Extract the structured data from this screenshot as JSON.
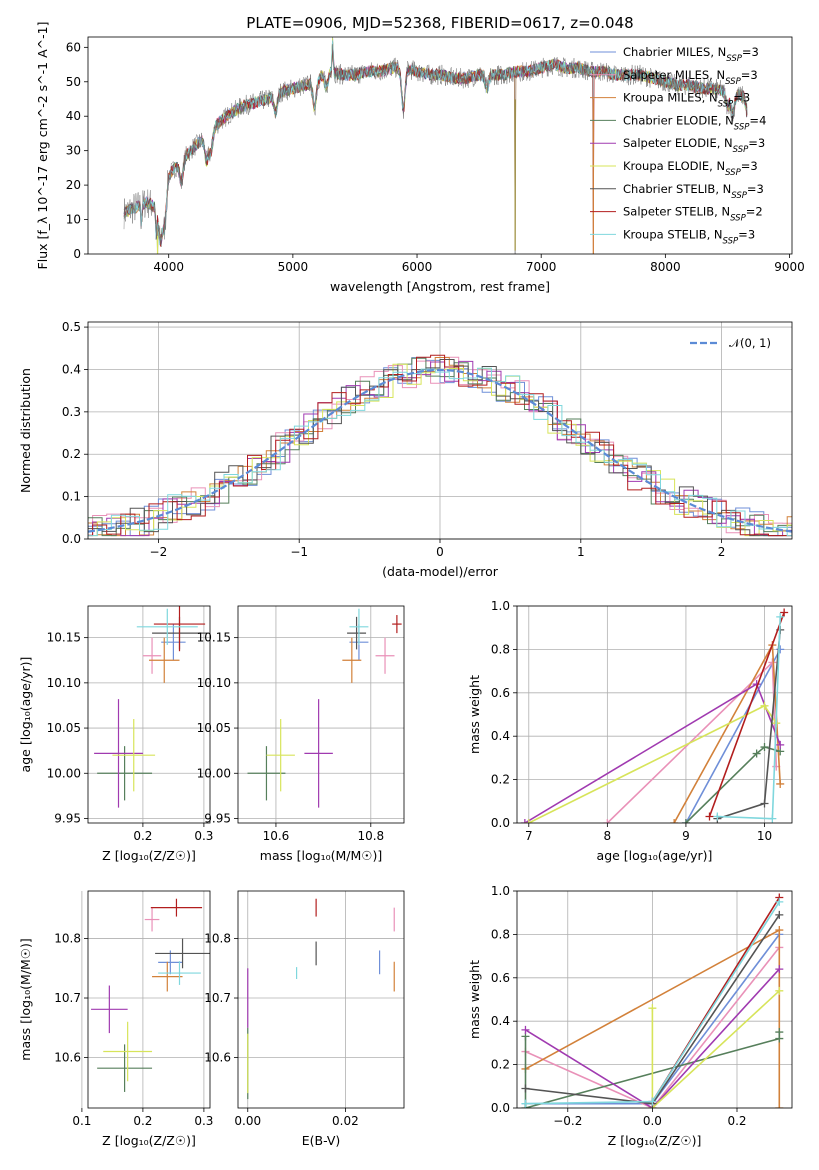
{
  "colors": {
    "Chabrier MILES": "#6f8fd8",
    "Salpeter MILES": "#e991b8",
    "Kroupa MILES": "#d2813a",
    "Chabrier ELODIE": "#567f5b",
    "Salpeter ELODIE": "#a03ab0",
    "Kroupa ELODIE": "#d7e45a",
    "Chabrier STELIB": "#545454",
    "Salpeter STELIB": "#b21e1e",
    "Kroupa STELIB": "#7fd7dd"
  },
  "chart_data": [
    {
      "id": "spectrum",
      "type": "line",
      "title": "PLATE=0906, MJD=52368, FIBERID=0617, z=0.048",
      "xlabel": "wavelength [Angstrom, rest frame]",
      "ylabel": "Flux [f_λ 10^-17 erg cm^-2 s^-1 A^-1]",
      "xlim": [
        3350,
        9020
      ],
      "ylim": [
        0,
        63
      ],
      "xticks": [
        4000,
        5000,
        6000,
        7000,
        8000,
        9000
      ],
      "yticks": [
        0,
        10,
        20,
        30,
        40,
        50,
        60
      ],
      "grid": false,
      "legend_position": "top-right",
      "legend": [
        {
          "model": "Chabrier MILES",
          "nssp": "3"
        },
        {
          "model": "Salpeter MILES",
          "nssp": "3"
        },
        {
          "model": "Kroupa MILES",
          "nssp": "3"
        },
        {
          "model": "Chabrier ELODIE",
          "nssp": "4"
        },
        {
          "model": "Salpeter ELODIE",
          "nssp": "3"
        },
        {
          "model": "Kroupa ELODIE",
          "nssp": "3"
        },
        {
          "model": "Chabrier STELIB",
          "nssp": "3"
        },
        {
          "model": "Salpeter STELIB",
          "nssp": "2"
        },
        {
          "model": "Kroupa STELIB",
          "nssp": "3"
        }
      ],
      "continuum": [
        [
          3640,
          12
        ],
        [
          3700,
          13
        ],
        [
          3760,
          14
        ],
        [
          3820,
          15
        ],
        [
          3880,
          14
        ],
        [
          3920,
          13
        ],
        [
          3960,
          16
        ],
        [
          4000,
          23
        ],
        [
          4100,
          27
        ],
        [
          4200,
          31
        ],
        [
          4300,
          34
        ],
        [
          4400,
          38
        ],
        [
          4500,
          41
        ],
        [
          4600,
          43
        ],
        [
          4700,
          44
        ],
        [
          4800,
          45
        ],
        [
          4900,
          47
        ],
        [
          5000,
          48
        ],
        [
          5100,
          49
        ],
        [
          5200,
          51
        ],
        [
          5300,
          53
        ],
        [
          5400,
          52
        ],
        [
          5500,
          52
        ],
        [
          5600,
          53
        ],
        [
          5700,
          53
        ],
        [
          5800,
          54
        ],
        [
          5900,
          54
        ],
        [
          6000,
          53
        ],
        [
          6100,
          52
        ],
        [
          6200,
          52
        ],
        [
          6300,
          51
        ],
        [
          6400,
          51
        ],
        [
          6500,
          52
        ],
        [
          6600,
          52
        ],
        [
          6700,
          52
        ],
        [
          6800,
          53
        ],
        [
          6900,
          53
        ],
        [
          7000,
          54
        ],
        [
          7100,
          55
        ],
        [
          7200,
          54
        ],
        [
          7300,
          54
        ],
        [
          7400,
          53
        ],
        [
          7500,
          53
        ],
        [
          7600,
          52
        ],
        [
          7700,
          52
        ],
        [
          7800,
          52
        ],
        [
          7900,
          51
        ],
        [
          8000,
          50
        ],
        [
          8100,
          49
        ],
        [
          8200,
          49
        ],
        [
          8300,
          48
        ],
        [
          8400,
          48
        ],
        [
          8500,
          47
        ],
        [
          8600,
          46
        ],
        [
          8660,
          46
        ]
      ],
      "absorption": [
        [
          3933,
          -10
        ],
        [
          3968,
          -9
        ],
        [
          4102,
          -6
        ],
        [
          4305,
          -7
        ],
        [
          4340,
          -6
        ],
        [
          4861,
          -5
        ],
        [
          5175,
          -8
        ],
        [
          5270,
          -4
        ],
        [
          5890,
          -12
        ],
        [
          6563,
          -4
        ],
        [
          8500,
          -4
        ],
        [
          8542,
          -6
        ],
        [
          8662,
          -5
        ]
      ],
      "spikes": [
        [
          5320,
          9
        ],
        [
          3780,
          -5
        ],
        [
          3900,
          -8
        ]
      ],
      "dropouts": [
        [
          3910,
          0
        ],
        [
          6790,
          1
        ],
        [
          7420,
          0
        ]
      ]
    },
    {
      "id": "residuals",
      "type": "histogram",
      "xlabel": "(data-model)/error",
      "ylabel": "Normed distribution",
      "xlim": [
        -2.5,
        2.5
      ],
      "ylim": [
        0,
        0.512
      ],
      "xticks": [
        -2,
        -1,
        0,
        1,
        2
      ],
      "yticks": [
        0.0,
        0.1,
        0.2,
        0.3,
        0.4,
        0.5
      ],
      "grid": true,
      "bin_width": 0.1,
      "legend_position": "top-right",
      "reference_curve": "𝒩(0, 1)",
      "reference_color": "#5b8bd6"
    },
    {
      "id": "age-vs-Z",
      "type": "errorbar",
      "xlabel": "Z [log₁₀(Z/Z☉)]",
      "ylabel": "age  [log₁₀(age/yr)]",
      "xlim": [
        0.11,
        0.31
      ],
      "ylim": [
        9.945,
        10.185
      ],
      "xticks": [
        0.2,
        0.3
      ],
      "yticks": [
        9.95,
        10.0,
        10.05,
        10.1,
        10.15
      ],
      "grid": true,
      "points": [
        {
          "model": "Chabrier MILES",
          "x": 0.25,
          "xerr": 0.02,
          "y": 10.145,
          "yerr": 0.02
        },
        {
          "model": "Salpeter MILES",
          "x": 0.215,
          "xerr": 0.015,
          "y": 10.13,
          "yerr": 0.02
        },
        {
          "model": "Kroupa MILES",
          "x": 0.235,
          "xerr": 0.025,
          "y": 10.125,
          "yerr": 0.025
        },
        {
          "model": "Chabrier ELODIE",
          "x": 0.17,
          "xerr": 0.045,
          "y": 10.0,
          "yerr": 0.03
        },
        {
          "model": "Salpeter ELODIE",
          "x": 0.16,
          "xerr": 0.04,
          "y": 10.022,
          "yerr": 0.06
        },
        {
          "model": "Kroupa ELODIE",
          "x": 0.185,
          "xerr": 0.035,
          "y": 10.02,
          "yerr": 0.04
        },
        {
          "model": "Chabrier STELIB",
          "x": 0.26,
          "xerr": 0.045,
          "y": 10.155,
          "yerr": 0.018
        },
        {
          "model": "Salpeter STELIB",
          "x": 0.26,
          "xerr": 0.042,
          "y": 10.165,
          "yerr": 0.03
        },
        {
          "model": "Kroupa STELIB",
          "x": 0.24,
          "xerr": 0.05,
          "y": 10.162,
          "yerr": 0.02
        }
      ]
    },
    {
      "id": "age-vs-mass",
      "type": "errorbar",
      "xlabel": "mass [log₁₀(M/M☉)]",
      "ylabel": "",
      "xlim": [
        10.52,
        10.87
      ],
      "ylim": [
        9.945,
        10.185
      ],
      "xticks": [
        10.6,
        10.8
      ],
      "yticks": [
        9.95,
        10.0,
        10.05,
        10.1,
        10.15
      ],
      "grid": true,
      "points": [
        {
          "model": "Chabrier MILES",
          "x": 10.775,
          "xerr": 0.02,
          "y": 10.145,
          "yerr": 0.02
        },
        {
          "model": "Salpeter MILES",
          "x": 10.83,
          "xerr": 0.02,
          "y": 10.13,
          "yerr": 0.02
        },
        {
          "model": "Kroupa MILES",
          "x": 10.76,
          "xerr": 0.02,
          "y": 10.125,
          "yerr": 0.025
        },
        {
          "model": "Chabrier ELODIE",
          "x": 10.58,
          "xerr": 0.04,
          "y": 10.0,
          "yerr": 0.03
        },
        {
          "model": "Salpeter ELODIE",
          "x": 10.69,
          "xerr": 0.03,
          "y": 10.022,
          "yerr": 0.06
        },
        {
          "model": "Kroupa ELODIE",
          "x": 10.61,
          "xerr": 0.03,
          "y": 10.02,
          "yerr": 0.04
        },
        {
          "model": "Chabrier STELIB",
          "x": 10.77,
          "xerr": 0.02,
          "y": 10.155,
          "yerr": 0.018
        },
        {
          "model": "Salpeter STELIB",
          "x": 10.855,
          "xerr": 0.01,
          "y": 10.165,
          "yerr": 0.01
        },
        {
          "model": "Kroupa STELIB",
          "x": 10.775,
          "xerr": 0.02,
          "y": 10.162,
          "yerr": 0.02
        }
      ]
    },
    {
      "id": "weight-vs-age",
      "type": "line",
      "xlabel": "age  [log₁₀(age/yr)]",
      "ylabel": "mass weight",
      "xlim": [
        6.85,
        10.35
      ],
      "ylim": [
        0,
        1.0
      ],
      "xticks": [
        7,
        8,
        9,
        10
      ],
      "yticks": [
        0.0,
        0.2,
        0.4,
        0.6,
        0.8,
        1.0
      ],
      "grid": true,
      "series": [
        {
          "model": "Chabrier MILES",
          "points": [
            [
              9.0,
              0.0
            ],
            [
              10.2,
              0.8
            ]
          ]
        },
        {
          "model": "Salpeter MILES",
          "points": [
            [
              8.0,
              0.0
            ],
            [
              10.1,
              0.74
            ],
            [
              10.15,
              0.26
            ]
          ]
        },
        {
          "model": "Kroupa MILES",
          "points": [
            [
              8.85,
              0.0
            ],
            [
              10.1,
              0.82
            ],
            [
              10.2,
              0.18
            ]
          ]
        },
        {
          "model": "Chabrier ELODIE",
          "points": [
            [
              9.0,
              0.0
            ],
            [
              9.9,
              0.32
            ],
            [
              10.0,
              0.35
            ],
            [
              10.2,
              0.33
            ]
          ]
        },
        {
          "model": "Salpeter ELODIE",
          "points": [
            [
              6.95,
              0.0
            ],
            [
              9.9,
              0.64
            ],
            [
              10.2,
              0.36
            ]
          ]
        },
        {
          "model": "Kroupa ELODIE",
          "points": [
            [
              7.0,
              0.0
            ],
            [
              10.0,
              0.54
            ],
            [
              10.15,
              0.46
            ]
          ]
        },
        {
          "model": "Chabrier STELIB",
          "points": [
            [
              9.4,
              0.02
            ],
            [
              10.0,
              0.09
            ],
            [
              10.2,
              0.89
            ]
          ]
        },
        {
          "model": "Salpeter STELIB",
          "points": [
            [
              9.3,
              0.03
            ],
            [
              10.25,
              0.97
            ]
          ]
        },
        {
          "model": "Kroupa STELIB",
          "points": [
            [
              9.4,
              0.03
            ],
            [
              10.1,
              0.02
            ],
            [
              10.2,
              0.95
            ]
          ]
        }
      ]
    },
    {
      "id": "mass-vs-Z",
      "type": "errorbar",
      "xlabel": "Z [log₁₀(Z/Z☉)]",
      "ylabel": "mass [log₁₀(M/M☉)]",
      "xlim": [
        0.11,
        0.31
      ],
      "ylim": [
        10.515,
        10.88
      ],
      "xticks": [
        0.1,
        0.2,
        0.3
      ],
      "yticks": [
        10.6,
        10.7,
        10.8
      ],
      "grid": true,
      "points": [
        {
          "model": "Chabrier MILES",
          "x": 0.245,
          "xerr": 0.02,
          "y": 10.76,
          "yerr": 0.02
        },
        {
          "model": "Salpeter MILES",
          "x": 0.215,
          "xerr": 0.012,
          "y": 10.832,
          "yerr": 0.02
        },
        {
          "model": "Kroupa MILES",
          "x": 0.24,
          "xerr": 0.025,
          "y": 10.736,
          "yerr": 0.025
        },
        {
          "model": "Chabrier ELODIE",
          "x": 0.17,
          "xerr": 0.045,
          "y": 10.582,
          "yerr": 0.04
        },
        {
          "model": "Salpeter ELODIE",
          "x": 0.145,
          "xerr": 0.03,
          "y": 10.681,
          "yerr": 0.04
        },
        {
          "model": "Kroupa ELODIE",
          "x": 0.175,
          "xerr": 0.04,
          "y": 10.61,
          "yerr": 0.05
        },
        {
          "model": "Chabrier STELIB",
          "x": 0.265,
          "xerr": 0.045,
          "y": 10.775,
          "yerr": 0.025
        },
        {
          "model": "Salpeter STELIB",
          "x": 0.255,
          "xerr": 0.042,
          "y": 10.852,
          "yerr": 0.015
        },
        {
          "model": "Kroupa STELIB",
          "x": 0.26,
          "xerr": 0.035,
          "y": 10.742,
          "yerr": 0.02
        }
      ]
    },
    {
      "id": "mass-vs-EBV",
      "type": "errorbar",
      "xlabel": "E(B-V)",
      "ylabel": "",
      "xlim": [
        -0.002,
        0.032
      ],
      "ylim": [
        10.515,
        10.88
      ],
      "xticks": [
        0.0,
        0.02
      ],
      "yticks": [
        10.6,
        10.7,
        10.8
      ],
      "grid": true,
      "points": [
        {
          "model": "Chabrier MILES",
          "x": 0.027,
          "y": 10.76,
          "yerr": 0.02
        },
        {
          "model": "Salpeter MILES",
          "x": 0.03,
          "y": 10.832,
          "yerr": 0.02
        },
        {
          "model": "Kroupa MILES",
          "x": 0.03,
          "y": 10.736,
          "yerr": 0.025
        },
        {
          "model": "Chabrier ELODIE",
          "x": 0.0,
          "y": 10.59,
          "yerr": 0.06
        },
        {
          "model": "Salpeter ELODIE",
          "x": 0.0,
          "y": 10.7,
          "yerr": 0.05
        },
        {
          "model": "Kroupa ELODIE",
          "x": 0.0,
          "y": 10.59,
          "yerr": 0.05
        },
        {
          "model": "Chabrier STELIB",
          "x": 0.014,
          "y": 10.775,
          "yerr": 0.02
        },
        {
          "model": "Salpeter STELIB",
          "x": 0.014,
          "y": 10.852,
          "yerr": 0.015
        },
        {
          "model": "Kroupa STELIB",
          "x": 0.01,
          "y": 10.742,
          "yerr": 0.01
        }
      ]
    },
    {
      "id": "weight-vs-Z",
      "type": "line",
      "xlabel": "Z [log₁₀(Z/Z☉)]",
      "ylabel": "mass weight",
      "xlim": [
        -0.32,
        0.33
      ],
      "ylim": [
        0,
        1.0
      ],
      "xticks": [
        -0.2,
        0.0,
        0.2
      ],
      "yticks": [
        0.0,
        0.2,
        0.4,
        0.6,
        0.8,
        1.0
      ],
      "grid": true,
      "series": [
        {
          "model": "Chabrier MILES",
          "points": [
            [
              -0.3,
              0.02
            ],
            [
              0.0,
              0.02
            ],
            [
              0.3,
              0.8
            ]
          ]
        },
        {
          "model": "Salpeter MILES",
          "points": [
            [
              -0.3,
              0.26
            ],
            [
              0.0,
              0.0
            ],
            [
              0.3,
              0.74
            ]
          ]
        },
        {
          "model": "Kroupa MILES",
          "points": [
            [
              -0.3,
              0.18
            ],
            [
              0.3,
              0.82
            ],
            [
              0.3,
              0.0
            ]
          ]
        },
        {
          "model": "Chabrier ELODIE",
          "points": [
            [
              -0.3,
              0.33
            ],
            [
              -0.3,
              0.0
            ],
            [
              0.3,
              0.32
            ],
            [
              0.3,
              0.35
            ]
          ]
        },
        {
          "model": "Salpeter ELODIE",
          "points": [
            [
              -0.3,
              0.36
            ],
            [
              0.0,
              0.0
            ],
            [
              0.3,
              0.64
            ]
          ]
        },
        {
          "model": "Kroupa ELODIE",
          "points": [
            [
              0.0,
              0.46
            ],
            [
              0.0,
              0.0
            ],
            [
              0.3,
              0.54
            ]
          ]
        },
        {
          "model": "Chabrier STELIB",
          "points": [
            [
              -0.3,
              0.09
            ],
            [
              0.0,
              0.02
            ],
            [
              0.3,
              0.89
            ]
          ]
        },
        {
          "model": "Salpeter STELIB",
          "points": [
            [
              0.0,
              0.03
            ],
            [
              0.3,
              0.97
            ]
          ]
        },
        {
          "model": "Kroupa STELIB",
          "points": [
            [
              -0.3,
              0.02
            ],
            [
              0.0,
              0.03
            ],
            [
              0.3,
              0.95
            ]
          ]
        }
      ]
    }
  ]
}
